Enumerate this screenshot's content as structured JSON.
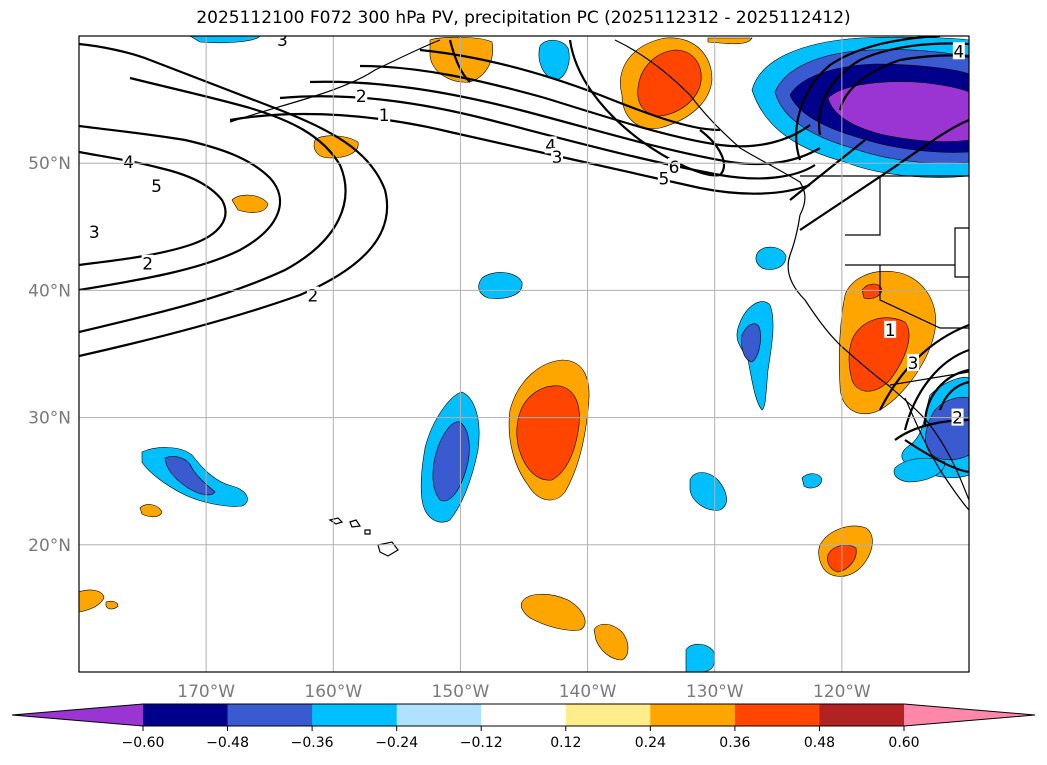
{
  "title": "2025112100 F072 300 hPa PV, precipitation PC (2025112312 - 2025112412)",
  "map": {
    "projection": "PlateCarree",
    "extent": {
      "lon_min": -180,
      "lon_max": -110,
      "lat_min": 10,
      "lat_max": 60
    },
    "lon_ticks": [
      {
        "lon": -170,
        "label": "170°W"
      },
      {
        "lon": -160,
        "label": "160°W"
      },
      {
        "lon": -150,
        "label": "150°W"
      },
      {
        "lon": -140,
        "label": "140°W"
      },
      {
        "lon": -130,
        "label": "130°W"
      },
      {
        "lon": -120,
        "label": "120°W"
      }
    ],
    "lat_ticks": [
      {
        "lat": 50,
        "label": "50°N"
      },
      {
        "lat": 40,
        "label": "40°N"
      },
      {
        "lat": 30,
        "label": "30°N"
      },
      {
        "lat": 20,
        "label": "20°N"
      }
    ],
    "gridlines": true
  },
  "pv_contour_labels": [
    {
      "text": "3",
      "lon": -164,
      "lat": 59.7
    },
    {
      "text": "2",
      "lon": -157.8,
      "lat": 55.3
    },
    {
      "text": "1",
      "lon": -156,
      "lat": 53.8
    },
    {
      "text": "4",
      "lon": -176.1,
      "lat": 50.1
    },
    {
      "text": "5",
      "lon": -173.9,
      "lat": 48.2
    },
    {
      "text": "3",
      "lon": -178.8,
      "lat": 44.6
    },
    {
      "text": "2",
      "lon": -174.6,
      "lat": 42.1
    },
    {
      "text": "2",
      "lon": -161.6,
      "lat": 39.6
    },
    {
      "text": "4",
      "lon": -142.9,
      "lat": 51.4
    },
    {
      "text": "3",
      "lon": -142.4,
      "lat": 50.5
    },
    {
      "text": "6",
      "lon": -133.2,
      "lat": 49.7
    },
    {
      "text": "5",
      "lon": -134,
      "lat": 48.8
    },
    {
      "text": "4",
      "lon": -110.8,
      "lat": 58.8
    },
    {
      "text": "1",
      "lon": -116.2,
      "lat": 36.9
    },
    {
      "text": "3",
      "lon": -114.4,
      "lat": 34.3
    },
    {
      "text": "2",
      "lon": -110.9,
      "lat": 30.0
    }
  ],
  "colorbar": {
    "extend": "both",
    "tick_labels": [
      "−0.60",
      "−0.48",
      "−0.36",
      "−0.24",
      "−0.12",
      "0.12",
      "0.24",
      "0.36",
      "0.48",
      "0.60"
    ],
    "colors": [
      "#9a35d4",
      "#00008b",
      "#3a5ad0",
      "#00bfff",
      "#b0e2ff",
      "#ffffff",
      "#ffec8b",
      "#ffa500",
      "#ff4500",
      "#b22222",
      "#ff88aa"
    ]
  },
  "fill_colors": {
    "neg_strong": "#9a35d4",
    "neg_dark": "#00008b",
    "neg_mid": "#3a5ad0",
    "neg_light": "#00bfff",
    "pos_light": "#ffa500",
    "pos_mid": "#ff4500"
  }
}
